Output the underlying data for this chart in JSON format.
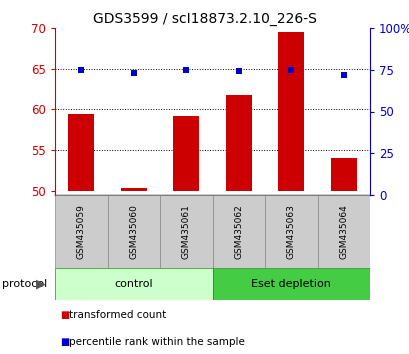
{
  "title": "GDS3599 / scI18873.2.10_226-S",
  "samples": [
    "GSM435059",
    "GSM435060",
    "GSM435061",
    "GSM435062",
    "GSM435063",
    "GSM435064"
  ],
  "transformed_counts": [
    59.5,
    50.35,
    59.2,
    61.8,
    69.5,
    54.0
  ],
  "percentile_ranks": [
    75,
    73,
    75,
    74,
    75,
    72
  ],
  "ylim_left": [
    49.5,
    70
  ],
  "ylim_right": [
    0,
    100
  ],
  "yticks_left": [
    50,
    55,
    60,
    65,
    70
  ],
  "yticks_right": [
    0,
    25,
    50,
    75,
    100
  ],
  "ytick_labels_right": [
    "0",
    "25",
    "50",
    "75",
    "100%"
  ],
  "bar_color": "#cc0000",
  "dot_color": "#0000cc",
  "bar_base": 50,
  "control_samples": [
    0,
    1,
    2
  ],
  "eset_samples": [
    3,
    4,
    5
  ],
  "control_label": "control",
  "eset_label": "Eset depletion",
  "control_bg": "#ccffcc",
  "eset_bg": "#44cc44",
  "sample_bg": "#cccccc",
  "protocol_label": "protocol",
  "legend_bar_label": "transformed count",
  "legend_dot_label": "percentile rank within the sample",
  "gridline_y": [
    55,
    60,
    65
  ],
  "dot_size": 5,
  "title_fontsize": 10
}
